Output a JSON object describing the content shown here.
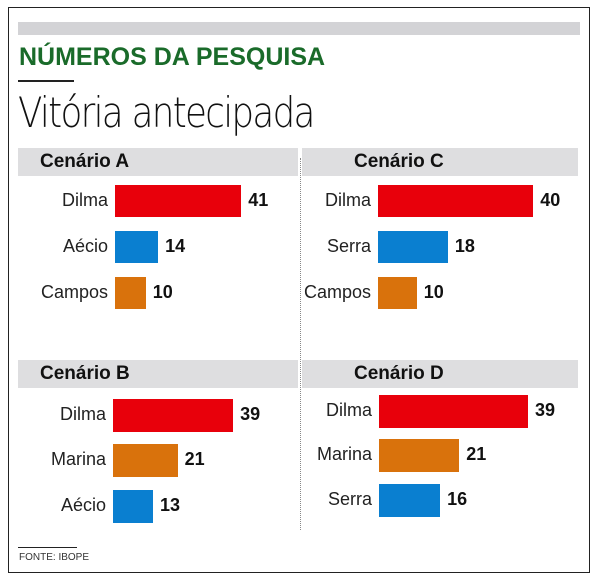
{
  "header": {
    "kicker": "NÚMEROS DA PESQUISA",
    "title": "Vitória antecipada"
  },
  "footer": {
    "source": "FONTE: IBOPE"
  },
  "colors": {
    "Dilma": "#e8000b",
    "Aécio": "#0a7fd0",
    "Serra": "#0a7fd0",
    "Campos": "#d9720c",
    "Marina": "#d9720c"
  },
  "chart_data": [
    {
      "type": "bar",
      "title": "Cenário A",
      "categories": [
        "Dilma",
        "Aécio",
        "Campos"
      ],
      "values": [
        41,
        14,
        10
      ],
      "unit": "%"
    },
    {
      "type": "bar",
      "title": "Cenário B",
      "categories": [
        "Dilma",
        "Marina",
        "Aécio"
      ],
      "values": [
        39,
        21,
        13
      ],
      "unit": "%"
    },
    {
      "type": "bar",
      "title": "Cenário C",
      "categories": [
        "Dilma",
        "Serra",
        "Campos"
      ],
      "values": [
        40,
        18,
        10
      ],
      "unit": "%"
    },
    {
      "type": "bar",
      "title": "Cenário D",
      "categories": [
        "Dilma",
        "Marina",
        "Serra"
      ],
      "values": [
        39,
        21,
        16
      ],
      "unit": "%"
    }
  ]
}
